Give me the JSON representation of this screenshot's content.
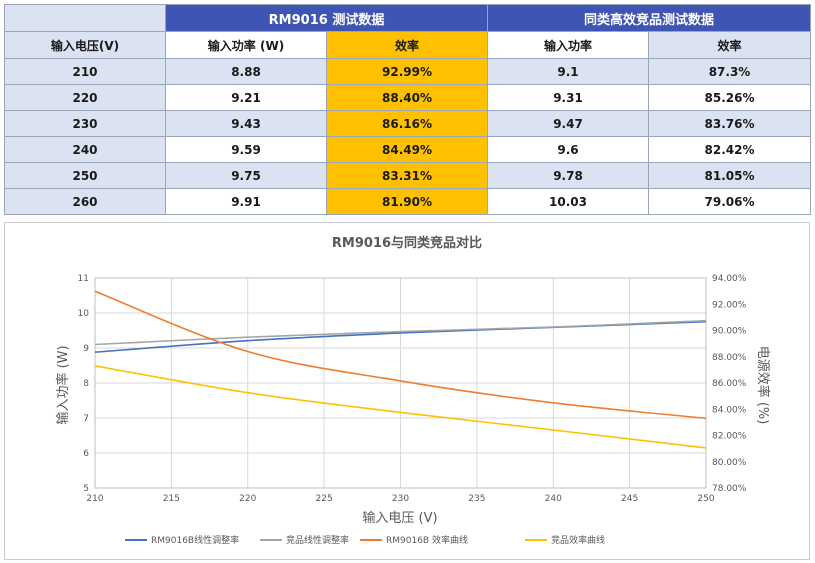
{
  "table": {
    "group_headers": {
      "blank": "",
      "rm9016": "RM9016 测试数据",
      "competitor": "同类高效竞品测试数据"
    },
    "column_headers": [
      "输入电压(V)",
      "输入功率 (W)",
      "效率",
      "输入功率",
      "效率"
    ],
    "rows": [
      [
        "210",
        "8.88",
        "92.99%",
        "9.1",
        "87.3%"
      ],
      [
        "220",
        "9.21",
        "88.40%",
        "9.31",
        "85.26%"
      ],
      [
        "230",
        "9.43",
        "86.16%",
        "9.47",
        "83.76%"
      ],
      [
        "240",
        "9.59",
        "84.49%",
        "9.6",
        "82.42%"
      ],
      [
        "250",
        "9.75",
        "83.31%",
        "9.78",
        "81.05%"
      ],
      [
        "260",
        "9.91",
        "81.90%",
        "10.03",
        "79.06%"
      ]
    ]
  },
  "chart_data": {
    "type": "line",
    "title": "RM9016与同类竞品对比",
    "xlabel": "输入电压 (V)",
    "ylabel_left": "输入功率 (W)",
    "ylabel_right": "电源效率 (%)",
    "xlim": [
      210,
      250
    ],
    "x_ticks": [
      "210",
      "215",
      "220",
      "225",
      "230",
      "235",
      "240",
      "245",
      "250"
    ],
    "ylim_left": [
      5,
      11
    ],
    "y_ticks_left": [
      "5",
      "6",
      "7",
      "8",
      "9",
      "10",
      "11"
    ],
    "ylim_right": [
      78,
      94
    ],
    "y_ticks_right": [
      "78.00%",
      "80.00%",
      "82.00%",
      "84.00%",
      "86.00%",
      "88.00%",
      "90.00%",
      "92.00%",
      "94.00%"
    ],
    "grid": true,
    "legend_position": "bottom",
    "series": [
      {
        "name": "RM9016B线性调整率",
        "axis": "left",
        "color": "#4472c4",
        "x": [
          210,
          220,
          230,
          240,
          250
        ],
        "y": [
          8.88,
          9.21,
          9.43,
          9.59,
          9.75
        ]
      },
      {
        "name": "竞品线性调整率",
        "axis": "left",
        "color": "#a5a5a5",
        "x": [
          210,
          220,
          230,
          240,
          250
        ],
        "y": [
          9.1,
          9.31,
          9.47,
          9.6,
          9.78
        ]
      },
      {
        "name": "RM9016B 效率曲线",
        "axis": "right",
        "color": "#ed7d31",
        "x": [
          210,
          220,
          230,
          240,
          250
        ],
        "y": [
          92.99,
          88.4,
          86.16,
          84.49,
          83.31
        ]
      },
      {
        "name": "竞品效率曲线",
        "axis": "right",
        "color": "#ffc000",
        "x": [
          210,
          220,
          230,
          240,
          250
        ],
        "y": [
          87.3,
          85.26,
          83.76,
          82.42,
          81.05
        ]
      }
    ]
  }
}
